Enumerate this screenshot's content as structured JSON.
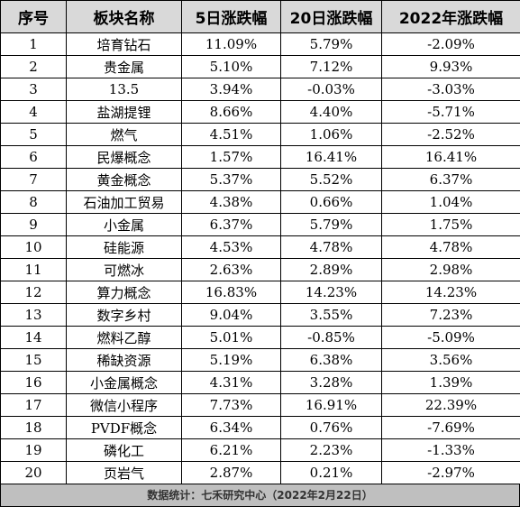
{
  "table": {
    "headers": [
      "序号",
      "板块名称",
      "5日涨跌幅",
      "20日涨跌幅",
      "2022年涨跌幅"
    ],
    "rows": [
      [
        "1",
        "培育钻石",
        "11.09%",
        "5.79%",
        "-2.09%"
      ],
      [
        "2",
        "贵金属",
        "5.10%",
        "7.12%",
        "9.93%"
      ],
      [
        "3",
        "13.5",
        "3.94%",
        "-0.03%",
        "-3.03%"
      ],
      [
        "4",
        "盐湖提锂",
        "8.66%",
        "4.40%",
        "-5.71%"
      ],
      [
        "5",
        "燃气",
        "4.51%",
        "1.06%",
        "-2.52%"
      ],
      [
        "6",
        "民爆概念",
        "1.57%",
        "16.41%",
        "16.41%"
      ],
      [
        "7",
        "黄金概念",
        "5.37%",
        "5.52%",
        "6.37%"
      ],
      [
        "8",
        "石油加工贸易",
        "4.38%",
        "0.66%",
        "1.04%"
      ],
      [
        "9",
        "小金属",
        "6.37%",
        "5.79%",
        "1.75%"
      ],
      [
        "10",
        "硅能源",
        "4.53%",
        "4.78%",
        "4.78%"
      ],
      [
        "11",
        "可燃冰",
        "2.63%",
        "2.89%",
        "2.98%"
      ],
      [
        "12",
        "算力概念",
        "16.83%",
        "14.23%",
        "14.23%"
      ],
      [
        "13",
        "数字乡村",
        "9.04%",
        "3.55%",
        "7.23%"
      ],
      [
        "14",
        "燃料乙醇",
        "5.01%",
        "-0.85%",
        "-5.09%"
      ],
      [
        "15",
        "稀缺资源",
        "5.19%",
        "6.38%",
        "3.56%"
      ],
      [
        "16",
        "小金属概念",
        "4.31%",
        "3.28%",
        "1.39%"
      ],
      [
        "17",
        "微信小程序",
        "7.73%",
        "16.91%",
        "22.39%"
      ],
      [
        "18",
        "PVDF概念",
        "6.34%",
        "0.76%",
        "-7.69%"
      ],
      [
        "19",
        "磷化工",
        "6.21%",
        "2.23%",
        "-1.33%"
      ],
      [
        "20",
        "页岩气",
        "2.87%",
        "0.21%",
        "-2.97%"
      ]
    ]
  },
  "footer": {
    "source": "数据统计：七禾研究中心（2022年2月22日）"
  },
  "colors": {
    "header_bg": "#d9d9d9",
    "footer_bg": "#bfbfbf",
    "border": "#000000"
  }
}
